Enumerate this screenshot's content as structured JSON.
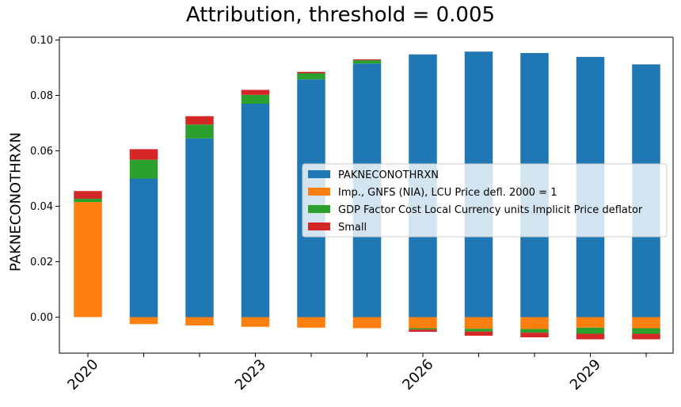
{
  "chart_data": {
    "type": "bar",
    "stacked": true,
    "title": "Attribution, threshold = 0.005",
    "xlabel": "",
    "ylabel": "PAKNECONOTHRXN",
    "categories": [
      "2020",
      "2021",
      "2022",
      "2023",
      "2024",
      "2025",
      "2026",
      "2027",
      "2028",
      "2029",
      "2030"
    ],
    "x_tick_labels": [
      "2020",
      "",
      "",
      "2023",
      "",
      "",
      "2026",
      "",
      "",
      "2029",
      ""
    ],
    "ylim": [
      -0.013,
      0.101
    ],
    "y_ticks": [
      0.0,
      0.02,
      0.04,
      0.06,
      0.08,
      0.1
    ],
    "y_tick_labels": [
      "0.00",
      "0.02",
      "0.04",
      "0.06",
      "0.08",
      "0.10"
    ],
    "legend_position": "center-right",
    "series": [
      {
        "name": "PAKNECONOTHRXN",
        "color": "#1f77b4",
        "values": [
          0.0,
          0.05,
          0.0645,
          0.077,
          0.0858,
          0.0915,
          0.0948,
          0.0958,
          0.0953,
          0.0939,
          0.0912
        ]
      },
      {
        "name": "Imp., GNFS (NIA), LCU Price defl. 2000 = 1",
        "color": "#ff7f0e",
        "values": [
          0.0415,
          -0.0025,
          -0.003,
          -0.0035,
          -0.0038,
          -0.004,
          -0.004,
          -0.0042,
          -0.0043,
          -0.0038,
          -0.004
        ]
      },
      {
        "name": "GDP Factor Cost Local Currency units Implicit Price deflator",
        "color": "#2ca02c",
        "values": [
          0.0012,
          0.0068,
          0.005,
          0.0032,
          0.0022,
          0.0012,
          -0.0005,
          -0.001,
          -0.0013,
          -0.0022,
          -0.002
        ]
      },
      {
        "name": "Small",
        "color": "#d62728",
        "values": [
          0.0028,
          0.0038,
          0.003,
          0.0018,
          0.0005,
          0.0003,
          -0.0008,
          -0.0015,
          -0.0017,
          -0.002,
          -0.002
        ]
      }
    ]
  }
}
